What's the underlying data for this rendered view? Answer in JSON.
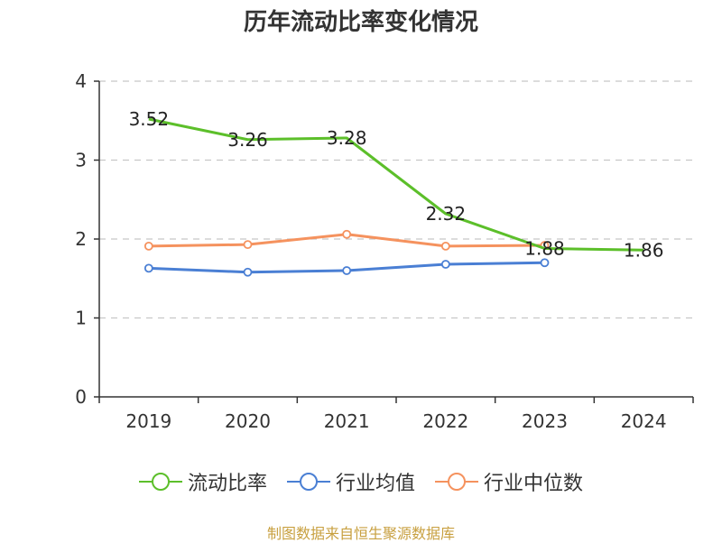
{
  "chart_data": {
    "type": "line",
    "title": "历年流动比率变化情况",
    "categories": [
      "2019",
      "2020",
      "2021",
      "2022",
      "2023",
      "2024"
    ],
    "ylim": [
      0,
      4
    ],
    "yticks": [
      "0",
      "1",
      "2",
      "3",
      "4"
    ],
    "yticks_values": [
      0,
      1,
      2,
      3,
      4
    ],
    "grid": true,
    "series": [
      {
        "name": "流动比率",
        "color": "#5cbf2a",
        "values": [
          3.52,
          3.26,
          3.28,
          2.32,
          1.88,
          1.86
        ],
        "labels": [
          "3.52",
          "3.26",
          "3.28",
          "2.32",
          "1.88",
          "1.86"
        ],
        "markers": false
      },
      {
        "name": "行业均值",
        "color": "#4a7fd4",
        "values": [
          1.63,
          1.58,
          1.6,
          1.68,
          1.7,
          null
        ],
        "markers": true
      },
      {
        "name": "行业中位数",
        "color": "#f5925e",
        "values": [
          1.91,
          1.93,
          2.06,
          1.91,
          1.92,
          null
        ],
        "markers": true
      }
    ],
    "source": "制图数据来自恒生聚源数据库"
  }
}
